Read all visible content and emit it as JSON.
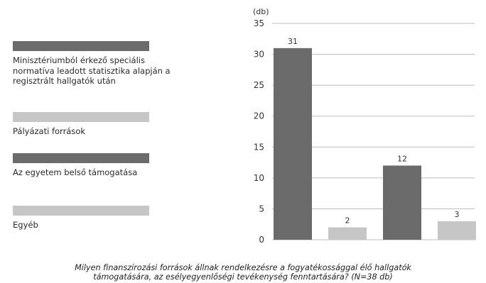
{
  "chart_data": {
    "type": "bar",
    "categories": [
      "Minisztériumból érkező speciális normatíva leadott statisztika alapján a regisztrált hallgatók után",
      "Pályázati források",
      "Az egyetem belső támogatása",
      "Egyéb"
    ],
    "values": [
      31,
      2,
      12,
      3
    ],
    "value_labels": [
      "31",
      "2",
      "12",
      "3"
    ],
    "colors": [
      "#6b6b6b",
      "#c6c6c6",
      "#6b6b6b",
      "#c6c6c6"
    ],
    "ylabel": "(db)",
    "ylim": [
      0,
      35
    ],
    "yticks": [
      0,
      5,
      10,
      15,
      20,
      25,
      30,
      35
    ],
    "ytick_labels": [
      "0",
      "5",
      "10",
      "15",
      "20",
      "25",
      "30",
      "35"
    ],
    "grid": true,
    "legend_position": "left"
  },
  "legend": [
    {
      "label": "Minisztériumból érkező speciális normatíva leadott statisztika alapján a regisztrált hallgatók után",
      "color": "#6b6b6b"
    },
    {
      "label": "Pályázati források",
      "color": "#c6c6c6"
    },
    {
      "label": "Az egyetem belső támogatása",
      "color": "#6b6b6b"
    },
    {
      "label": "Egyéb",
      "color": "#c6c6c6"
    }
  ],
  "caption": {
    "line1": "Milyen finanszírozási források állnak rendelkezésre a fogyatékossággal élő hallgatók",
    "line2": "támogatására, az esélyegyenlőségi tevékenység fenntartására? (N=38 db)"
  }
}
